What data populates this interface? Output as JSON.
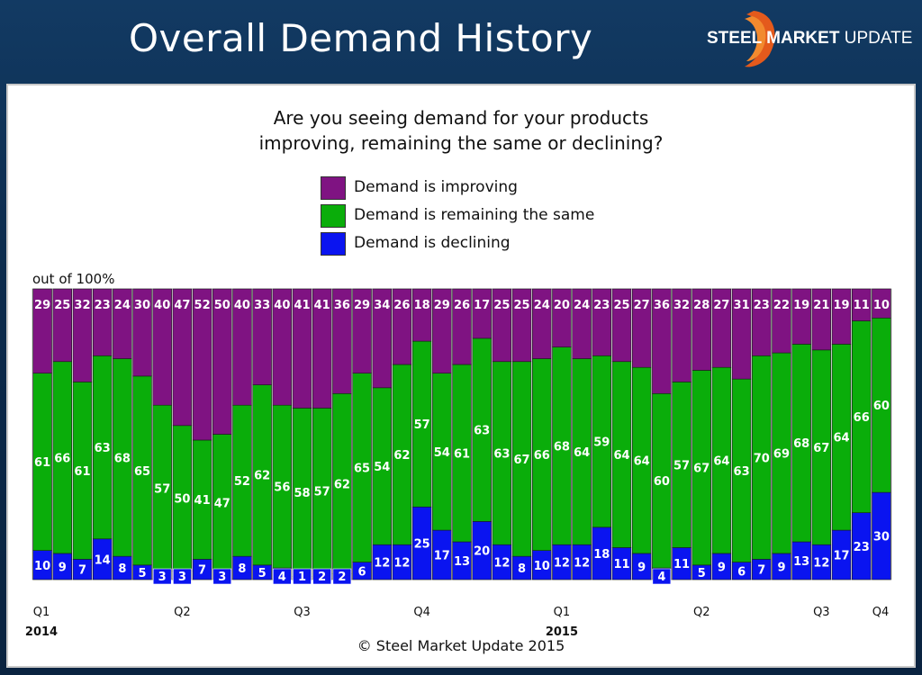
{
  "header": {
    "title": "Overall Demand History",
    "logo_bold": "STEEL MARKET",
    "logo_rest": " UPDATE"
  },
  "colors": {
    "improving": "#7f1382",
    "same": "#0aad0a",
    "declining": "#0a14f0",
    "background": "#0d2a4a"
  },
  "chart_data": {
    "type": "bar",
    "stacked": true,
    "title_lines": [
      "Are you seeing demand for your products",
      "improving, remaining the same or declining?"
    ],
    "ylabel": "out of 100%",
    "ylim": [
      0,
      100
    ],
    "legend": [
      "Demand is improving",
      "Demand is remaining the same",
      "Demand is declining"
    ],
    "legend_placement": "top-center",
    "x_tick_labels": [
      "Q1",
      "Q2",
      "Q3",
      "Q4",
      "Q1",
      "Q2",
      "Q3",
      "Q4"
    ],
    "year_labels": [
      "2014",
      "2015"
    ],
    "series": [
      {
        "name": "Demand is declining",
        "values": [
          10,
          9,
          7,
          14,
          8,
          5,
          3,
          3,
          7,
          3,
          8,
          5,
          4,
          1,
          2,
          2,
          6,
          12,
          12,
          25,
          17,
          13,
          20,
          12,
          8,
          10,
          12,
          12,
          18,
          11,
          9,
          4,
          11,
          5,
          9,
          6,
          7,
          9,
          13,
          12,
          17,
          23,
          30
        ]
      },
      {
        "name": "Demand is remaining the same",
        "values": [
          61,
          66,
          61,
          63,
          68,
          65,
          57,
          50,
          41,
          47,
          52,
          62,
          56,
          58,
          57,
          62,
          65,
          54,
          62,
          57,
          54,
          61,
          63,
          63,
          67,
          66,
          68,
          64,
          59,
          64,
          64,
          60,
          57,
          67,
          64,
          63,
          70,
          69,
          68,
          67,
          64,
          66,
          60
        ]
      },
      {
        "name": "Demand is improving",
        "values": [
          29,
          25,
          32,
          23,
          24,
          30,
          40,
          47,
          52,
          50,
          40,
          33,
          40,
          41,
          41,
          36,
          29,
          34,
          26,
          18,
          29,
          26,
          17,
          25,
          25,
          24,
          20,
          24,
          23,
          25,
          27,
          36,
          32,
          28,
          27,
          31,
          23,
          22,
          19,
          21,
          19,
          11,
          10
        ]
      }
    ]
  },
  "footer": {
    "copyright": "© Steel Market Update 2015"
  }
}
